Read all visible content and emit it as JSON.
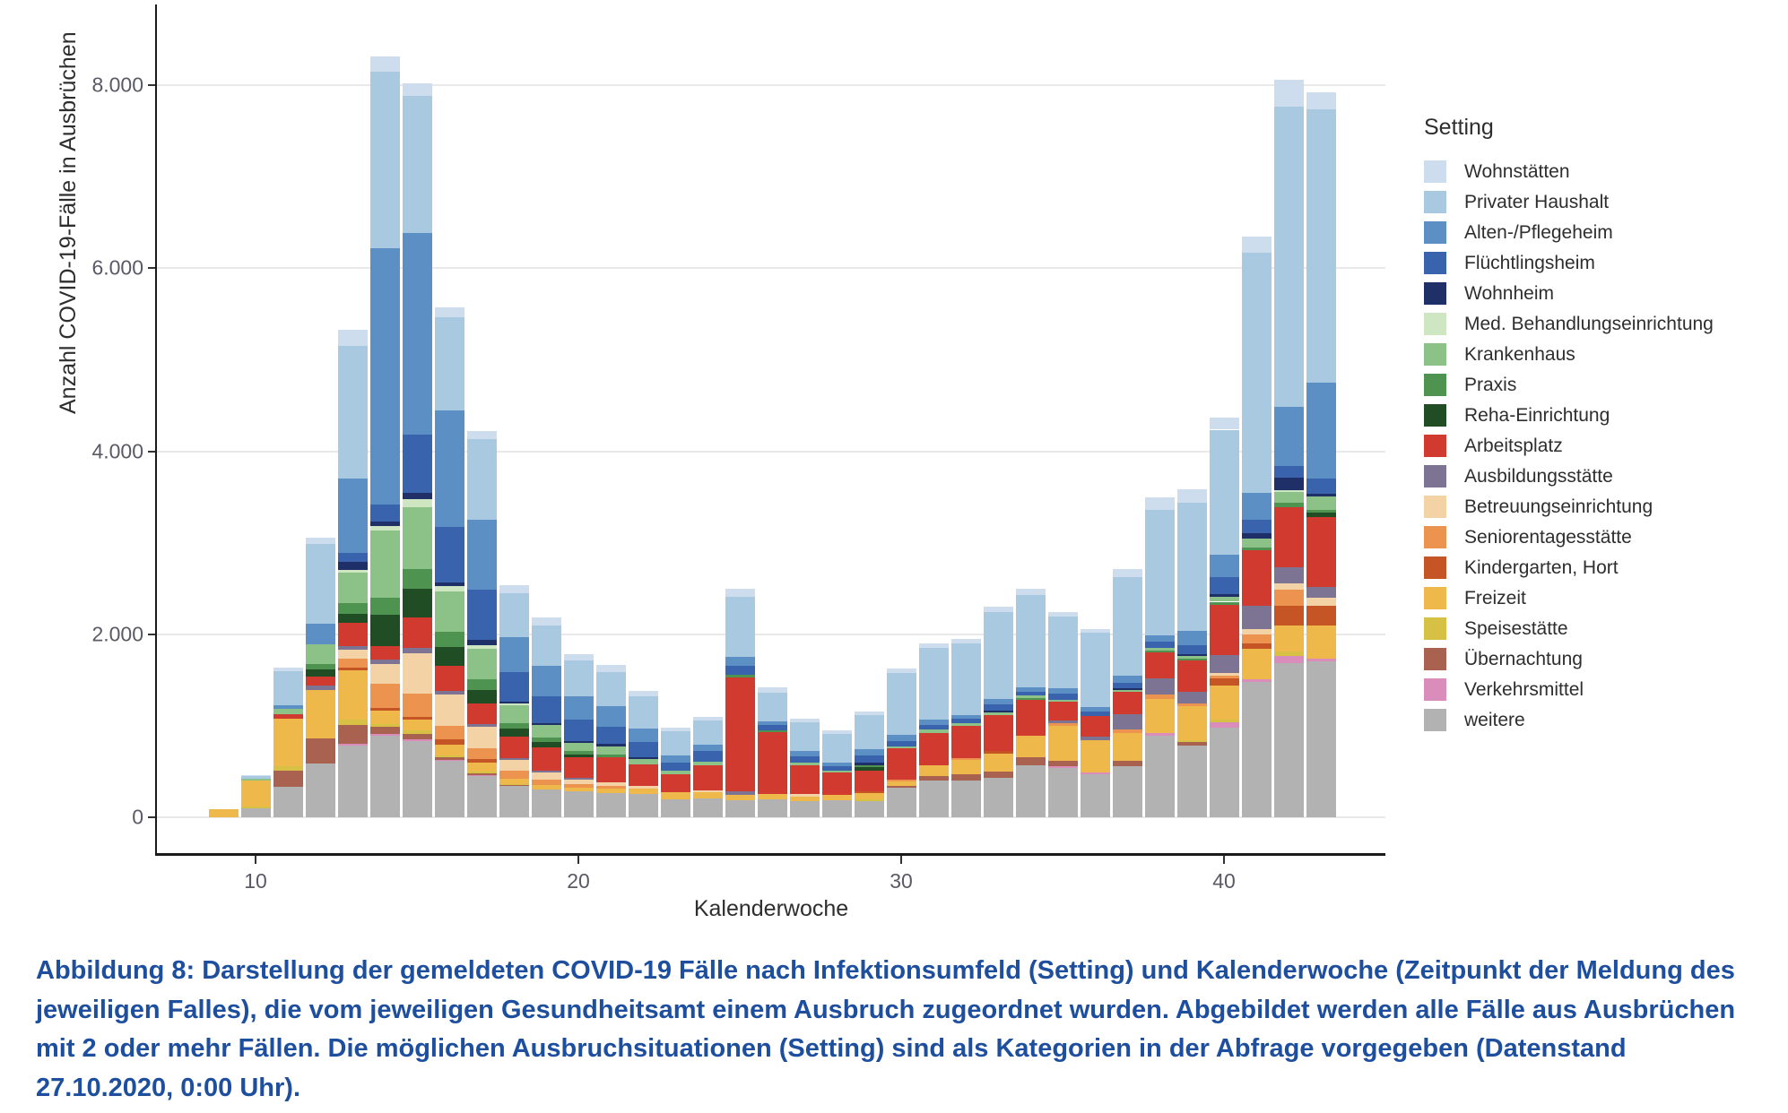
{
  "figure": {
    "caption": "Abbildung 8: Darstellung der gemeldeten COVID-19 Fälle nach Infektionsumfeld (Setting) und Kalenderwoche (Zeitpunkt der Meldung des jeweiligen Falles), die vom jeweiligen Gesundheitsamt einem Ausbruch zugeordnet wurden. Abgebildet werden alle Fälle aus Ausbrüchen mit 2 oder mehr Fällen. Die möglichen Ausbruchsituationen (Setting) sind als Kategorien in der Abfrage vorgegeben (Datenstand 27.10.2020, 0:00 Uhr)."
  },
  "chart_data": {
    "type": "bar",
    "stacked": true,
    "title": "",
    "xlabel": "Kalenderwoche",
    "ylabel": "Anzahl COVID-19-Fälle in Ausbrüchen",
    "legend_title": "Setting",
    "legend_position": "right",
    "grid": true,
    "x": [
      9,
      10,
      11,
      12,
      13,
      14,
      15,
      16,
      17,
      18,
      19,
      20,
      21,
      22,
      23,
      24,
      25,
      26,
      27,
      28,
      29,
      30,
      31,
      32,
      33,
      34,
      35,
      36,
      37,
      38,
      39,
      40,
      41,
      42,
      43
    ],
    "xticks": [
      10,
      20,
      30,
      40
    ],
    "yticks": [
      0,
      2000,
      4000,
      6000,
      8000
    ],
    "ytick_labels": [
      "0",
      "2.000",
      "4.000",
      "6.000",
      "8.000"
    ],
    "ylim": [
      0,
      8500
    ],
    "series": [
      {
        "name": "Wohnstätten",
        "color": "#cdddee",
        "values": [
          0,
          10,
          40,
          75,
          180,
          165,
          140,
          110,
          90,
          90,
          80,
          70,
          70,
          60,
          40,
          40,
          90,
          60,
          40,
          40,
          40,
          50,
          50,
          50,
          60,
          70,
          50,
          40,
          90,
          140,
          140,
          135,
          185,
          290,
          185
        ]
      },
      {
        "name": "Privater Haushalt",
        "color": "#a9c9e1",
        "values": [
          0,
          30,
          380,
          870,
          1450,
          1930,
          1500,
          1010,
          880,
          480,
          450,
          390,
          380,
          350,
          260,
          270,
          660,
          310,
          320,
          310,
          380,
          680,
          780,
          780,
          950,
          1010,
          780,
          820,
          1070,
          1375,
          1400,
          1370,
          2625,
          3280,
          2990
        ]
      },
      {
        "name": "Alten-/Pflegeheim",
        "color": "#5c90c5",
        "values": [
          0,
          0,
          40,
          230,
          810,
          2800,
          2200,
          1280,
          760,
          380,
          330,
          250,
          220,
          150,
          80,
          70,
          100,
          40,
          50,
          40,
          60,
          70,
          60,
          40,
          60,
          50,
          60,
          40,
          80,
          70,
          160,
          245,
          290,
          645,
          1045
        ]
      },
      {
        "name": "Flüchtlingsheim",
        "color": "#3a63ad",
        "values": [
          0,
          0,
          0,
          0,
          100,
          190,
          640,
          600,
          550,
          330,
          290,
          240,
          190,
          160,
          90,
          110,
          90,
          60,
          70,
          50,
          80,
          60,
          50,
          50,
          60,
          40,
          70,
          50,
          60,
          60,
          100,
          185,
          145,
          125,
          165
        ]
      },
      {
        "name": "Wohnheim",
        "color": "#1f3069",
        "values": [
          0,
          0,
          0,
          0,
          90,
          50,
          60,
          40,
          60,
          20,
          20,
          20,
          30,
          20,
          0,
          0,
          0,
          0,
          0,
          0,
          30,
          0,
          0,
          0,
          20,
          0,
          0,
          0,
          20,
          0,
          20,
          30,
          60,
          145,
          30
        ]
      },
      {
        "name": "Med. Behandlungseinrichtung",
        "color": "#cfe6c2",
        "values": [
          0,
          0,
          0,
          0,
          30,
          50,
          90,
          60,
          40,
          20,
          0,
          0,
          0,
          0,
          0,
          0,
          0,
          0,
          0,
          0,
          0,
          0,
          0,
          0,
          0,
          0,
          0,
          0,
          0,
          0,
          0,
          0,
          0,
          20,
          0
        ]
      },
      {
        "name": "Krankenhaus",
        "color": "#8cc287",
        "values": [
          0,
          20,
          50,
          210,
          330,
          730,
          680,
          440,
          330,
          190,
          140,
          90,
          80,
          60,
          40,
          40,
          0,
          0,
          30,
          20,
          0,
          20,
          40,
          30,
          30,
          30,
          20,
          0,
          20,
          30,
          30,
          50,
          95,
          115,
          145
        ]
      },
      {
        "name": "Praxis",
        "color": "#4e9350",
        "values": [
          0,
          0,
          0,
          60,
          120,
          190,
          210,
          170,
          120,
          60,
          50,
          30,
          30,
          0,
          0,
          0,
          30,
          20,
          0,
          0,
          20,
          0,
          0,
          0,
          0,
          20,
          0,
          0,
          0,
          20,
          20,
          30,
          30,
          50,
          30
        ]
      },
      {
        "name": "Reha-Einrichtung",
        "color": "#214d24",
        "values": [
          0,
          0,
          0,
          80,
          100,
          340,
          320,
          210,
          150,
          90,
          60,
          30,
          0,
          0,
          0,
          0,
          0,
          0,
          0,
          0,
          40,
          0,
          0,
          0,
          0,
          0,
          0,
          0,
          0,
          0,
          0,
          0,
          0,
          0,
          50
        ]
      },
      {
        "name": "Arbeitsplatz",
        "color": "#d13a2e",
        "values": [
          0,
          0,
          50,
          100,
          250,
          150,
          330,
          270,
          220,
          230,
          250,
          230,
          280,
          240,
          200,
          280,
          1250,
          680,
          320,
          250,
          230,
          340,
          350,
          350,
          400,
          390,
          200,
          230,
          240,
          290,
          340,
          550,
          605,
          655,
          760
        ]
      },
      {
        "name": "Ausbildungsstätte",
        "color": "#7d7494",
        "values": [
          0,
          0,
          0,
          40,
          40,
          50,
          60,
          40,
          30,
          20,
          20,
          20,
          0,
          0,
          0,
          0,
          40,
          0,
          0,
          0,
          0,
          0,
          0,
          0,
          0,
          0,
          30,
          40,
          170,
          175,
          130,
          195,
          260,
          175,
          125
        ]
      },
      {
        "name": "Betreuungseinrichtung",
        "color": "#f3d3a6",
        "values": [
          0,
          0,
          0,
          0,
          100,
          210,
          440,
          340,
          240,
          120,
          80,
          50,
          40,
          30,
          0,
          20,
          0,
          0,
          20,
          0,
          0,
          0,
          0,
          0,
          0,
          0,
          0,
          0,
          0,
          0,
          0,
          30,
          60,
          65,
          80
        ]
      },
      {
        "name": "Seniorentagesstätte",
        "color": "#ed9350",
        "values": [
          0,
          0,
          0,
          0,
          90,
          270,
          250,
          150,
          110,
          90,
          60,
          40,
          30,
          0,
          0,
          0,
          0,
          0,
          0,
          0,
          0,
          20,
          0,
          20,
          0,
          0,
          30,
          0,
          40,
          50,
          30,
          30,
          95,
          175,
          0
        ]
      },
      {
        "name": "Kindergarten, Hort",
        "color": "#c65526",
        "values": [
          0,
          0,
          0,
          0,
          30,
          20,
          30,
          60,
          40,
          0,
          0,
          0,
          0,
          0,
          0,
          0,
          0,
          0,
          0,
          0,
          20,
          0,
          0,
          0,
          20,
          0,
          0,
          0,
          0,
          0,
          0,
          80,
          60,
          215,
          215
        ]
      },
      {
        "name": "Freizeit",
        "color": "#eeb94a",
        "values": [
          90,
          280,
          520,
          535,
          540,
          150,
          120,
          110,
          100,
          60,
          50,
          40,
          50,
          60,
          70,
          60,
          50,
          50,
          50,
          50,
          60,
          50,
          120,
          160,
          200,
          230,
          380,
          350,
          300,
          370,
          370,
          370,
          330,
          290,
          370
        ]
      },
      {
        "name": "Speisestätte",
        "color": "#d6c145",
        "values": [
          0,
          20,
          50,
          0,
          60,
          30,
          40,
          20,
          20,
          10,
          0,
          0,
          0,
          0,
          0,
          0,
          0,
          0,
          0,
          0,
          20,
          0,
          0,
          0,
          0,
          0,
          0,
          0,
          0,
          0,
          20,
          30,
          0,
          50,
          0
        ]
      },
      {
        "name": "Übernachtung",
        "color": "#a9624f",
        "values": [
          0,
          0,
          180,
          275,
          210,
          80,
          60,
          30,
          20,
          10,
          0,
          0,
          0,
          0,
          0,
          0,
          0,
          0,
          0,
          0,
          0,
          20,
          50,
          70,
          70,
          90,
          60,
          0,
          60,
          0,
          40,
          0,
          0,
          0,
          0
        ]
      },
      {
        "name": "Verkehrsmittel",
        "color": "#da8cbb",
        "values": [
          0,
          0,
          0,
          0,
          20,
          20,
          20,
          10,
          10,
          0,
          0,
          0,
          0,
          0,
          0,
          0,
          0,
          0,
          0,
          0,
          0,
          0,
          0,
          0,
          0,
          0,
          20,
          20,
          0,
          30,
          0,
          65,
          30,
          80,
          30
        ]
      },
      {
        "name": "weitere",
        "color": "#b2b2b2",
        "values": [
          0,
          100,
          330,
          585,
          780,
          890,
          830,
          620,
          450,
          340,
          300,
          280,
          260,
          250,
          200,
          210,
          190,
          200,
          180,
          190,
          180,
          320,
          400,
          400,
          430,
          570,
          540,
          470,
          560,
          890,
          780,
          975,
          1480,
          1680,
          1700
        ]
      }
    ]
  }
}
